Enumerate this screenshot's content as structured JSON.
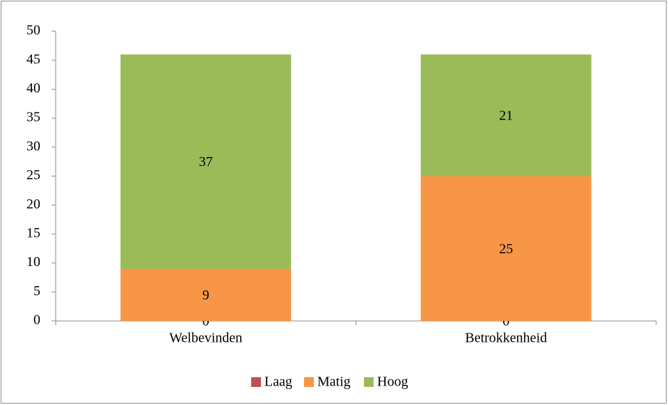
{
  "chart_data": {
    "type": "stacked_bar",
    "categories": [
      "Welbevinden",
      "Betrokkenheid"
    ],
    "series": [
      {
        "name": "Laag",
        "color": "#c0504d",
        "values": [
          0,
          0
        ]
      },
      {
        "name": "Matig",
        "color": "#f79646",
        "values": [
          9,
          25
        ]
      },
      {
        "name": "Hoog",
        "color": "#9bbb59",
        "values": [
          37,
          21
        ]
      }
    ],
    "ylim": [
      0,
      50
    ],
    "yticks": [
      0,
      5,
      10,
      15,
      20,
      25,
      30,
      35,
      40,
      45,
      50
    ],
    "legend": "bottom"
  }
}
